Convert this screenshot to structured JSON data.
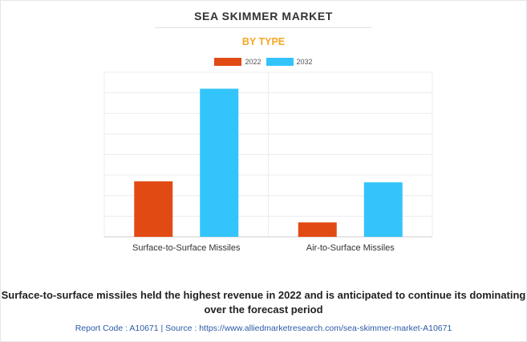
{
  "header": {
    "title": "SEA SKIMMER MARKET",
    "subtitle": "BY TYPE"
  },
  "colors": {
    "series_2022": "#e24a14",
    "series_2032": "#33c4fb",
    "subtitle": "#f5a623"
  },
  "chart_data": {
    "type": "bar",
    "title": "SEA SKIMMER MARKET",
    "subtitle": "BY TYPE",
    "xlabel": "",
    "ylabel": "",
    "categories": [
      "Surface-to-Surface Missiles",
      "Air-to-Surface Missiles"
    ],
    "series": [
      {
        "name": "2022",
        "values": [
          2.7,
          0.7
        ]
      },
      {
        "name": "2032",
        "values": [
          7.2,
          2.65
        ]
      }
    ],
    "ylim": [
      0,
      8
    ],
    "grid": true,
    "legend_position": "top-center"
  },
  "caption": "Surface-to-surface missiles held the highest revenue in 2022 and is anticipated to continue its dominating over the forecast period",
  "footer": "Report Code : A10671  |  Source : https://www.alliedmarketresearch.com/sea-skimmer-market-A10671"
}
